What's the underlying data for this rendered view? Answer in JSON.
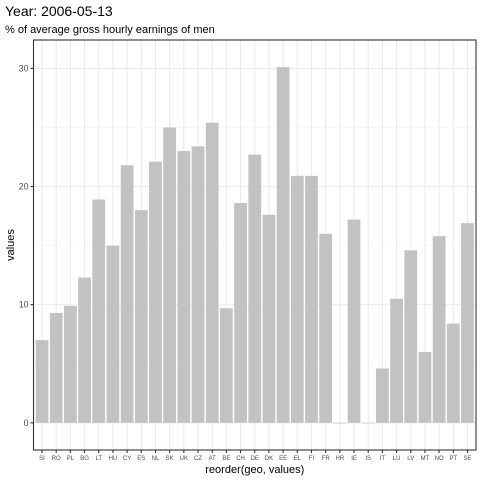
{
  "chart_data": {
    "type": "bar",
    "title": "Year: 2006-05-13",
    "subtitle": "% of average gross hourly earnings of men",
    "xlabel": "reorder(geo, values)",
    "ylabel": "values",
    "categories": [
      "SI",
      "RO",
      "PL",
      "BG",
      "LT",
      "HU",
      "CY",
      "ES",
      "NL",
      "SK",
      "UK",
      "CZ",
      "AT",
      "BE",
      "CH",
      "DE",
      "DK",
      "EE",
      "EL",
      "FI",
      "FR",
      "HR",
      "IE",
      "IS",
      "IT",
      "LU",
      "LV",
      "MT",
      "NO",
      "PT",
      "SE"
    ],
    "values": [
      7.0,
      9.3,
      9.9,
      12.3,
      18.9,
      15.0,
      21.8,
      18.0,
      22.1,
      25.0,
      23.0,
      23.4,
      25.4,
      9.7,
      18.6,
      22.7,
      17.6,
      30.1,
      20.9,
      20.9,
      16.0,
      0.0,
      17.2,
      0.0,
      4.6,
      10.5,
      14.6,
      6.0,
      15.8,
      8.4,
      16.9
    ],
    "y_ticks": [
      0,
      10,
      20,
      30
    ],
    "ylim": [
      -2.3,
      32.4
    ],
    "grid": true,
    "legend": "none",
    "colors": {
      "bar": "#c2c2c2",
      "panel_background": "#ffffff",
      "grid_major": "#ebebeb",
      "grid_minor": "#f5f5f5",
      "panel_border": "#333333"
    }
  }
}
